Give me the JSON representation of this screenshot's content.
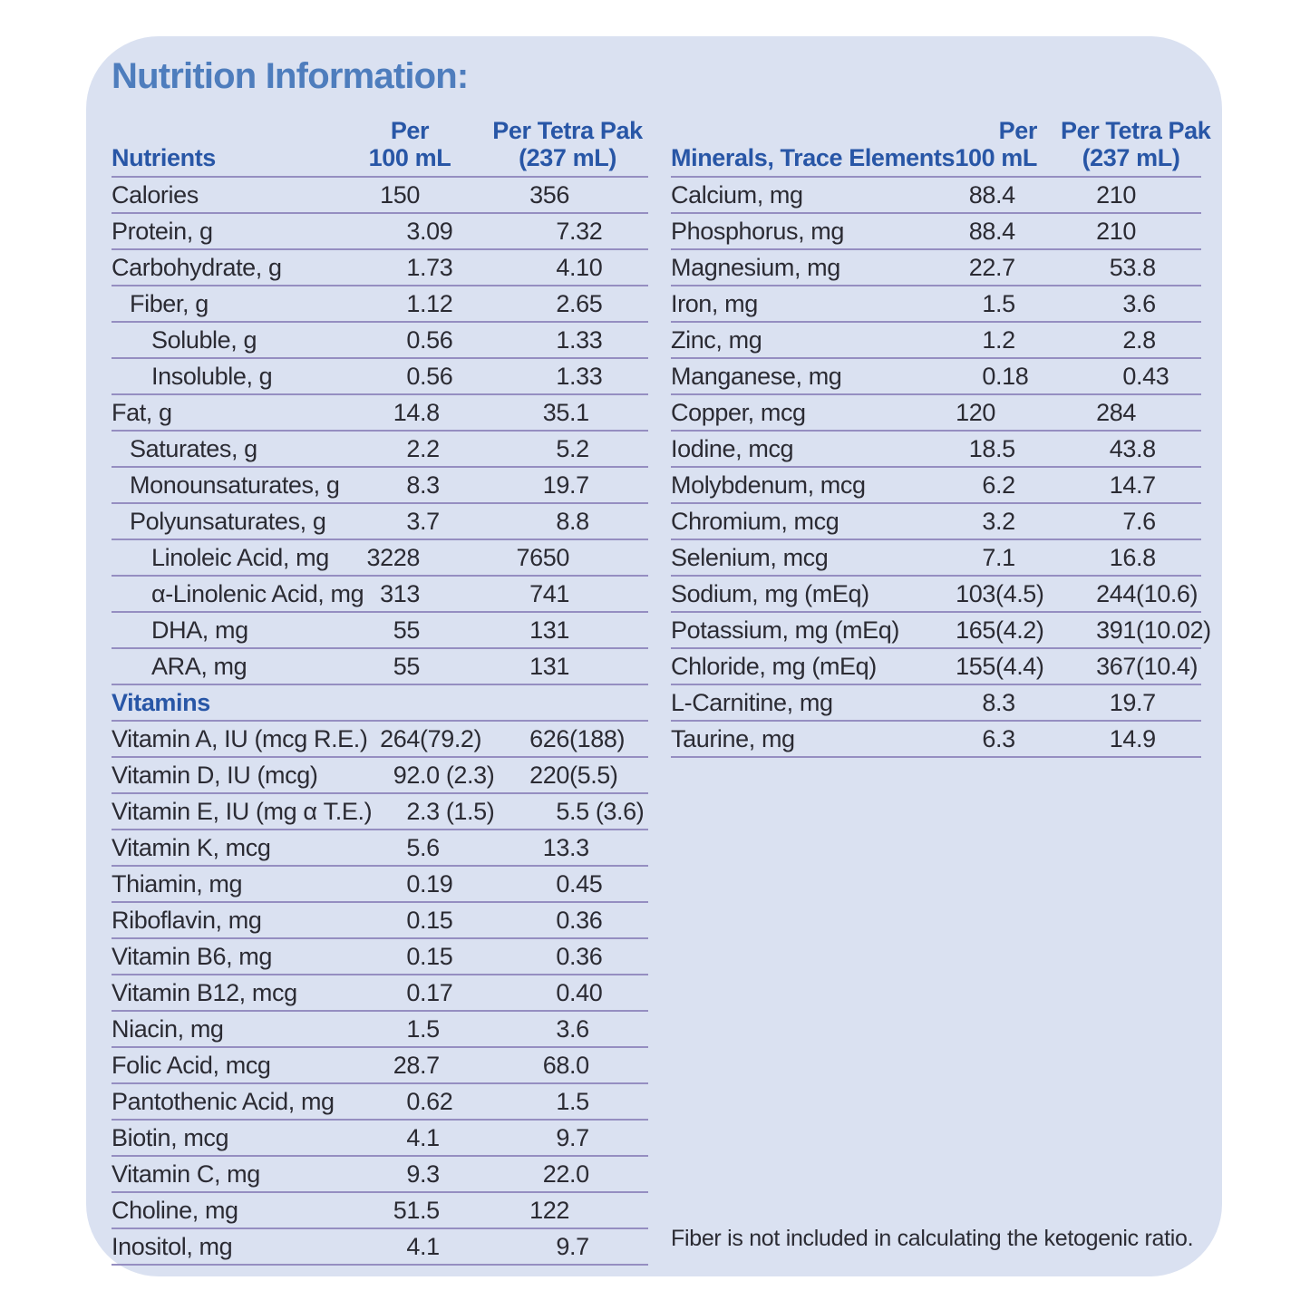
{
  "title": "Nutrition Information:",
  "colors": {
    "page_bg": "#ffffff",
    "card_bg": "#dae1f1",
    "title_blue": "#4e7dbd",
    "header_blue": "#2856a6",
    "body_text": "#2b2b33",
    "rule": "#958ec1"
  },
  "left_table": {
    "header": {
      "col1": "Nutrients",
      "per": "Per",
      "per_unit": "100 mL",
      "pak": "Per Tetra Pak",
      "pak_unit": "(237 mL)"
    },
    "rows": [
      {
        "label": "Calories",
        "indent": 0,
        "per_100ml": "150",
        "per_tetra_pak": "356"
      },
      {
        "label": "Protein, g",
        "indent": 0,
        "per_100ml": "3.09",
        "per_tetra_pak": "7.32"
      },
      {
        "label": "Carbohydrate, g",
        "indent": 0,
        "per_100ml": "1.73",
        "per_tetra_pak": "4.10"
      },
      {
        "label": "Fiber, g",
        "indent": 1,
        "per_100ml": "1.12",
        "per_tetra_pak": "2.65"
      },
      {
        "label": "Soluble, g",
        "indent": 2,
        "per_100ml": "0.56",
        "per_tetra_pak": "1.33"
      },
      {
        "label": "Insoluble, g",
        "indent": 2,
        "per_100ml": "0.56",
        "per_tetra_pak": "1.33"
      },
      {
        "label": "Fat, g",
        "indent": 0,
        "per_100ml": "14.8",
        "per_tetra_pak": "35.1"
      },
      {
        "label": "Saturates, g",
        "indent": 1,
        "per_100ml": "2.2",
        "per_tetra_pak": "5.2"
      },
      {
        "label": "Monounsaturates, g",
        "indent": 1,
        "per_100ml": "8.3",
        "per_tetra_pak": "19.7"
      },
      {
        "label": "Polyunsaturates, g",
        "indent": 1,
        "per_100ml": "3.7",
        "per_tetra_pak": "8.8"
      },
      {
        "label": "Linoleic Acid, mg",
        "indent": 2,
        "per_100ml": "3228",
        "per_tetra_pak": "7650"
      },
      {
        "label": "α-Linolenic Acid, mg",
        "indent": 2,
        "per_100ml": "313",
        "per_tetra_pak": "741"
      },
      {
        "label": "DHA, mg",
        "indent": 2,
        "per_100ml": "55",
        "per_tetra_pak": "131"
      },
      {
        "label": "ARA, mg",
        "indent": 2,
        "per_100ml": "55",
        "per_tetra_pak": "131"
      },
      {
        "label": "Vitamins",
        "type": "section",
        "indent": 0,
        "per_100ml": "",
        "per_tetra_pak": ""
      },
      {
        "label": "Vitamin A, IU (mcg R.E.)",
        "indent": 0,
        "per_100ml": "264 (79.2)",
        "per_tetra_pak": "626 (188)"
      },
      {
        "label": "Vitamin D, IU (mcg)",
        "indent": 0,
        "per_100ml": "92.0 (2.3)",
        "per_tetra_pak": "220 (5.5)"
      },
      {
        "label": "Vitamin E, IU (mg α T.E.)",
        "indent": 0,
        "per_100ml": "2.3 (1.5)",
        "per_tetra_pak": "5.5 (3.6)"
      },
      {
        "label": "Vitamin K, mcg",
        "indent": 0,
        "per_100ml": "5.6",
        "per_tetra_pak": "13.3"
      },
      {
        "label": "Thiamin, mg",
        "indent": 0,
        "per_100ml": "0.19",
        "per_tetra_pak": "0.45"
      },
      {
        "label": "Riboflavin, mg",
        "indent": 0,
        "per_100ml": "0.15",
        "per_tetra_pak": "0.36"
      },
      {
        "label": "Vitamin B6, mg",
        "indent": 0,
        "per_100ml": "0.15",
        "per_tetra_pak": "0.36"
      },
      {
        "label": "Vitamin B12, mcg",
        "indent": 0,
        "per_100ml": "0.17",
        "per_tetra_pak": "0.40"
      },
      {
        "label": "Niacin, mg",
        "indent": 0,
        "per_100ml": "1.5",
        "per_tetra_pak": "3.6"
      },
      {
        "label": "Folic Acid, mcg",
        "indent": 0,
        "per_100ml": "28.7",
        "per_tetra_pak": "68.0"
      },
      {
        "label": "Pantothenic Acid, mg",
        "indent": 0,
        "per_100ml": "0.62",
        "per_tetra_pak": "1.5"
      },
      {
        "label": "Biotin, mcg",
        "indent": 0,
        "per_100ml": "4.1",
        "per_tetra_pak": "9.7"
      },
      {
        "label": "Vitamin C, mg",
        "indent": 0,
        "per_100ml": "9.3",
        "per_tetra_pak": "22.0"
      },
      {
        "label": "Choline, mg",
        "indent": 0,
        "per_100ml": "51.5",
        "per_tetra_pak": "122"
      },
      {
        "label": "Inositol, mg",
        "indent": 0,
        "per_100ml": "4.1",
        "per_tetra_pak": "9.7"
      }
    ]
  },
  "right_table": {
    "header": {
      "col1": "Minerals, Trace Elements",
      "per": "Per",
      "per_unit": "100 mL",
      "pak": "Per Tetra Pak",
      "pak_unit": "(237 mL)"
    },
    "rows": [
      {
        "label": "Calcium, mg",
        "indent": 0,
        "per_100ml": "88.4",
        "per_tetra_pak": "210"
      },
      {
        "label": "Phosphorus, mg",
        "indent": 0,
        "per_100ml": "88.4",
        "per_tetra_pak": "210"
      },
      {
        "label": "Magnesium, mg",
        "indent": 0,
        "per_100ml": "22.7",
        "per_tetra_pak": "53.8"
      },
      {
        "label": "Iron, mg",
        "indent": 0,
        "per_100ml": "1.5",
        "per_tetra_pak": "3.6"
      },
      {
        "label": "Zinc, mg",
        "indent": 0,
        "per_100ml": "1.2",
        "per_tetra_pak": "2.8"
      },
      {
        "label": "Manganese, mg",
        "indent": 0,
        "per_100ml": "0.18",
        "per_tetra_pak": "0.43"
      },
      {
        "label": "Copper, mcg",
        "indent": 0,
        "per_100ml": "120",
        "per_tetra_pak": "284"
      },
      {
        "label": "Iodine, mcg",
        "indent": 0,
        "per_100ml": "18.5",
        "per_tetra_pak": "43.8"
      },
      {
        "label": "Molybdenum, mcg",
        "indent": 0,
        "per_100ml": "6.2",
        "per_tetra_pak": "14.7"
      },
      {
        "label": "Chromium, mcg",
        "indent": 0,
        "per_100ml": "3.2",
        "per_tetra_pak": "7.6"
      },
      {
        "label": "Selenium, mcg",
        "indent": 0,
        "per_100ml": "7.1",
        "per_tetra_pak": "16.8"
      },
      {
        "label": "Sodium, mg (mEq)",
        "indent": 0,
        "per_100ml": "103 (4.5)",
        "per_tetra_pak": "244 (10.6)"
      },
      {
        "label": "Potassium, mg (mEq)",
        "indent": 0,
        "per_100ml": "165 (4.2)",
        "per_tetra_pak": "391 (10.02)"
      },
      {
        "label": "Chloride, mg (mEq)",
        "indent": 0,
        "per_100ml": "155 (4.4)",
        "per_tetra_pak": "367 (10.4)"
      },
      {
        "label": "L-Carnitine, mg",
        "indent": 0,
        "per_100ml": "8.3",
        "per_tetra_pak": "19.7"
      },
      {
        "label": "Taurine, mg",
        "indent": 0,
        "per_100ml": "6.3",
        "per_tetra_pak": "14.9"
      }
    ]
  },
  "footnote": "Fiber is not included in calculating the ketogenic ratio."
}
